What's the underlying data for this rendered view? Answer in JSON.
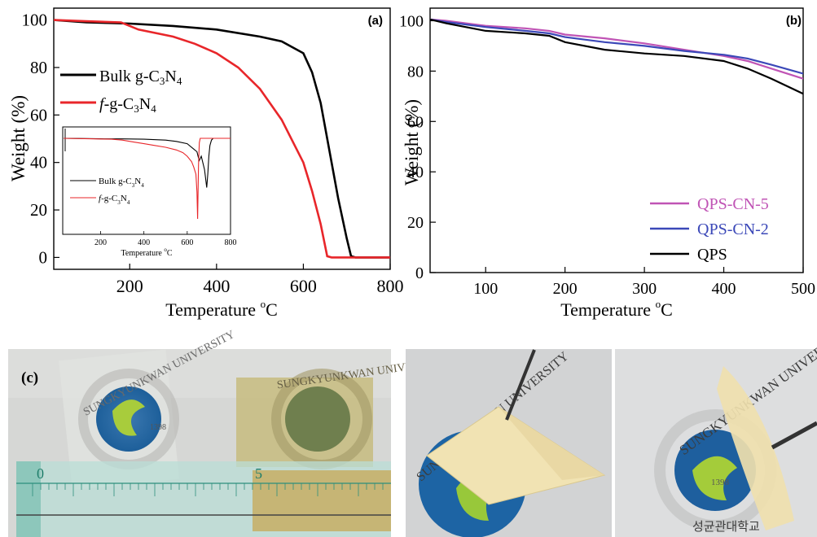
{
  "chart_data": [
    {
      "panel": "(a)",
      "type": "line",
      "xlabel": "Temperature",
      "xunit": "oC",
      "ylabel": "Weight (%)",
      "xlim": [
        25,
        800
      ],
      "ylim": [
        -5,
        105
      ],
      "xticks": [
        200,
        400,
        600,
        800
      ],
      "yticks": [
        0,
        20,
        40,
        60,
        80,
        100
      ],
      "colors": {
        "bulk": "#000000",
        "f": "#e8262a"
      },
      "legend_placement": "upper-left",
      "legend_items": [
        {
          "pre": "",
          "main": "Bulk g-C",
          "sub1": "3",
          "mid": "N",
          "sub2": "4"
        },
        {
          "pre": "f",
          "main": "-g-C",
          "sub1": "3",
          "mid": "N",
          "sub2": "4"
        }
      ],
      "series": [
        {
          "key": "bulk",
          "x": [
            25,
            100,
            200,
            300,
            400,
            500,
            550,
            600,
            620,
            640,
            660,
            680,
            700,
            710,
            720,
            800
          ],
          "y": [
            100,
            99,
            98.5,
            97.5,
            96,
            93,
            91,
            86,
            78,
            65,
            45,
            25,
            8,
            0.5,
            0,
            0
          ]
        },
        {
          "key": "f",
          "x": [
            25,
            100,
            180,
            220,
            300,
            350,
            400,
            450,
            500,
            550,
            600,
            620,
            640,
            655,
            665,
            700,
            800
          ],
          "y": [
            100,
            99.5,
            99,
            96,
            93,
            90,
            86,
            80,
            71,
            58,
            40,
            28,
            14,
            0.5,
            0,
            0,
            0
          ]
        }
      ],
      "inset": {
        "type": "line",
        "xlabel": "Temperature",
        "xunit": "oC",
        "xlim": [
          25,
          800
        ],
        "xticks": [
          200,
          400,
          600,
          800
        ],
        "legend_items": [
          {
            "pre": "",
            "main": "Bulk g-C",
            "sub1": "3",
            "mid": "N",
            "sub2": "4"
          },
          {
            "pre": "f",
            "main": "-g-C",
            "sub1": "3",
            "mid": "N",
            "sub2": "4"
          }
        ],
        "series": [
          {
            "key": "bulk",
            "x": [
              30,
              100,
              200,
              300,
              400,
              500,
              550,
              600,
              630,
              645,
              655,
              665,
              680,
              690,
              695,
              700,
              705,
              712,
              720,
              800
            ],
            "y": [
              0,
              -0.02,
              -0.05,
              -0.06,
              -0.1,
              -0.2,
              -0.35,
              -0.6,
              -1.2,
              -1.5,
              -2.5,
              -2.0,
              -3.5,
              -5.5,
              -4.0,
              -2.0,
              -0.8,
              -0.2,
              0,
              0
            ]
          },
          {
            "key": "f",
            "x": [
              30,
              150,
              250,
              300,
              350,
              400,
              450,
              500,
              550,
              580,
              600,
              620,
              630,
              640,
              645,
              648,
              652,
              656,
              660,
              670,
              800
            ],
            "y": [
              0,
              -0.05,
              -0.1,
              -0.2,
              -0.4,
              -0.6,
              -0.8,
              -1.0,
              -1.3,
              -1.6,
              -2.0,
              -2.6,
              -3.2,
              -4.0,
              -6.0,
              -9.0,
              -3.0,
              -0.5,
              0,
              0,
              0
            ]
          }
        ]
      }
    },
    {
      "panel": "(b)",
      "type": "line",
      "xlabel": "Temperature",
      "xunit": "oC",
      "ylabel": "Weight (%)",
      "xlim": [
        30,
        500
      ],
      "ylim": [
        0,
        105
      ],
      "xticks": [
        100,
        200,
        300,
        400,
        500
      ],
      "yticks": [
        0,
        20,
        40,
        60,
        80,
        100
      ],
      "legend_placement": "lower-right",
      "series": [
        {
          "name": "QPS-CN-5",
          "color": "#c054b5",
          "x": [
            30,
            50,
            100,
            150,
            180,
            200,
            250,
            300,
            350,
            400,
            430,
            460,
            500
          ],
          "y": [
            100.5,
            100,
            98,
            97,
            96,
            94.5,
            93,
            91,
            88.5,
            86,
            84,
            81,
            77
          ]
        },
        {
          "name": "QPS-CN-2",
          "color": "#3b48b8",
          "x": [
            30,
            50,
            100,
            150,
            180,
            200,
            250,
            300,
            350,
            400,
            430,
            460,
            500
          ],
          "y": [
            100.5,
            99.5,
            97.5,
            96,
            95,
            93.5,
            91.5,
            90,
            88,
            86.5,
            85,
            82.5,
            79
          ]
        },
        {
          "name": "QPS",
          "color": "#000000",
          "x": [
            30,
            50,
            100,
            150,
            180,
            200,
            250,
            300,
            350,
            400,
            430,
            460,
            500
          ],
          "y": [
            100.5,
            99,
            96,
            95,
            94,
            91.5,
            88.5,
            87,
            86,
            84,
            81,
            77,
            71
          ]
        }
      ]
    }
  ],
  "panel_c_label": "(c)",
  "photos": {
    "university": "SUNGKYUNKWAN UNIVERSITY",
    "year": "1398",
    "korean": "성균관대학교",
    "ruler_zero": "0",
    "ruler_five": "5"
  }
}
